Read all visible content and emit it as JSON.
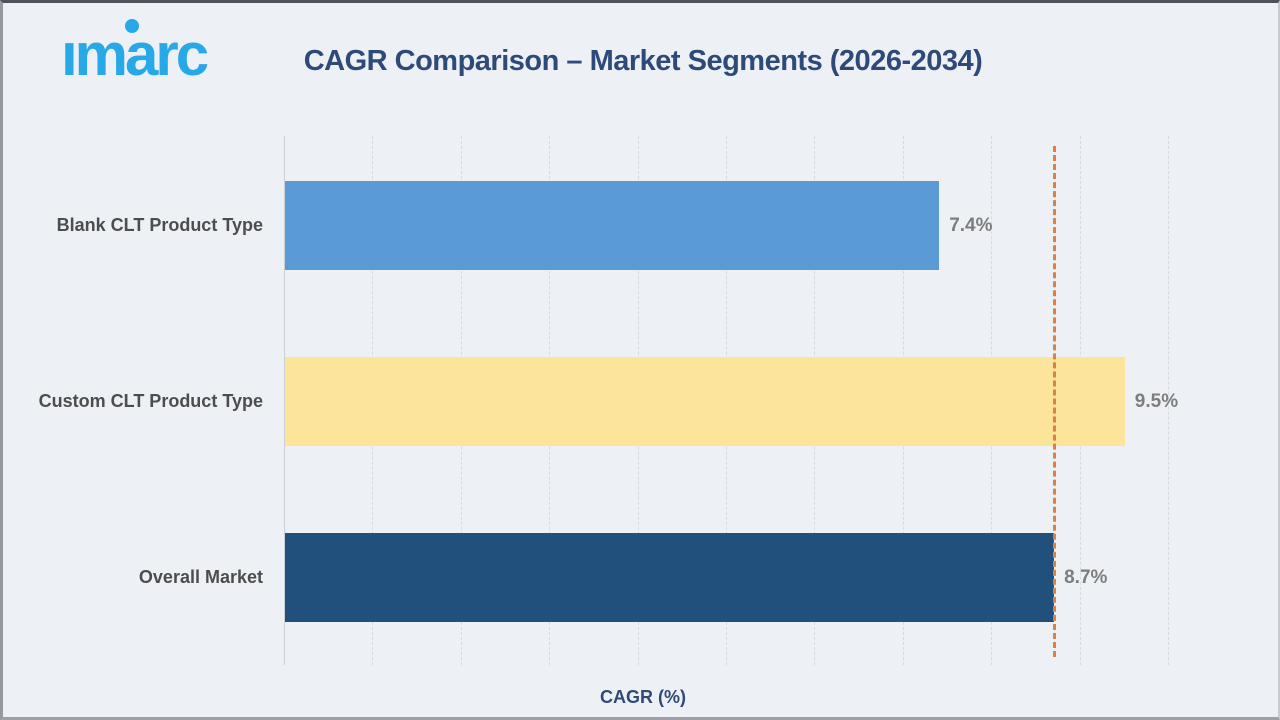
{
  "header": {
    "logo_text": "imarc",
    "title": "CAGR Comparison – Market Segments (2026-2034)"
  },
  "chart_data": {
    "type": "bar",
    "orientation": "horizontal",
    "title": "CAGR Comparison – Market Segments (2026-2034)",
    "xlabel": "CAGR (%)",
    "categories": [
      "Blank CLT Product Type",
      "Custom CLT Product Type",
      "Overall Market"
    ],
    "values": [
      7.4,
      9.5,
      8.7
    ],
    "value_labels": [
      "7.4%",
      "9.5%",
      "8.7%"
    ],
    "bar_colors": [
      "#5B9BD5",
      "#FCE49B",
      "#21507C"
    ],
    "xlim": [
      0,
      11.3
    ],
    "grid_x": [
      1,
      2,
      3,
      4,
      5,
      6,
      7,
      8,
      9,
      10
    ],
    "grid_style": "dashed",
    "legend": "none",
    "reference_line": {
      "value": 8.7,
      "color": "#DC8142",
      "style": "dashed"
    }
  },
  "colors": {
    "background": "#EDF1F6",
    "logo": "#27A9E8",
    "title": "#2E4A78",
    "category_label": "#4D4D4D",
    "value_label": "#7D7D7D"
  }
}
